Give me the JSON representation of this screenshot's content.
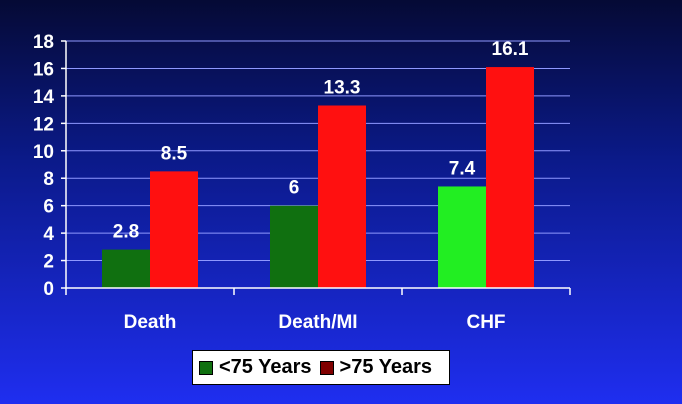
{
  "chart_data": {
    "type": "bar",
    "categories": [
      "Death",
      "Death/MI",
      "CHF"
    ],
    "series": [
      {
        "name": "<75 Years",
        "values": [
          2.8,
          6,
          7.4
        ],
        "color": "#107010"
      },
      {
        "name": ">75 Years",
        "values": [
          8.5,
          13.3,
          16.1
        ],
        "color": "#ff1010"
      }
    ],
    "point_colors": [
      [
        "#107010",
        "#107010",
        "#22ee22"
      ],
      [
        "#ff1010",
        "#ff1010",
        "#ff1010"
      ]
    ],
    "data_labels": [
      [
        "2.8",
        "6",
        "7.4"
      ],
      [
        "8.5",
        "13.3",
        "16.1"
      ]
    ],
    "yticks": [
      0,
      2,
      4,
      6,
      8,
      10,
      12,
      14,
      16,
      18
    ],
    "ylim": [
      0,
      18
    ],
    "grid": true,
    "legend_position": "bottom",
    "legend_swatch_colors": [
      "#107010",
      "#800000"
    ],
    "title": "",
    "xlabel": "",
    "ylabel": ""
  }
}
